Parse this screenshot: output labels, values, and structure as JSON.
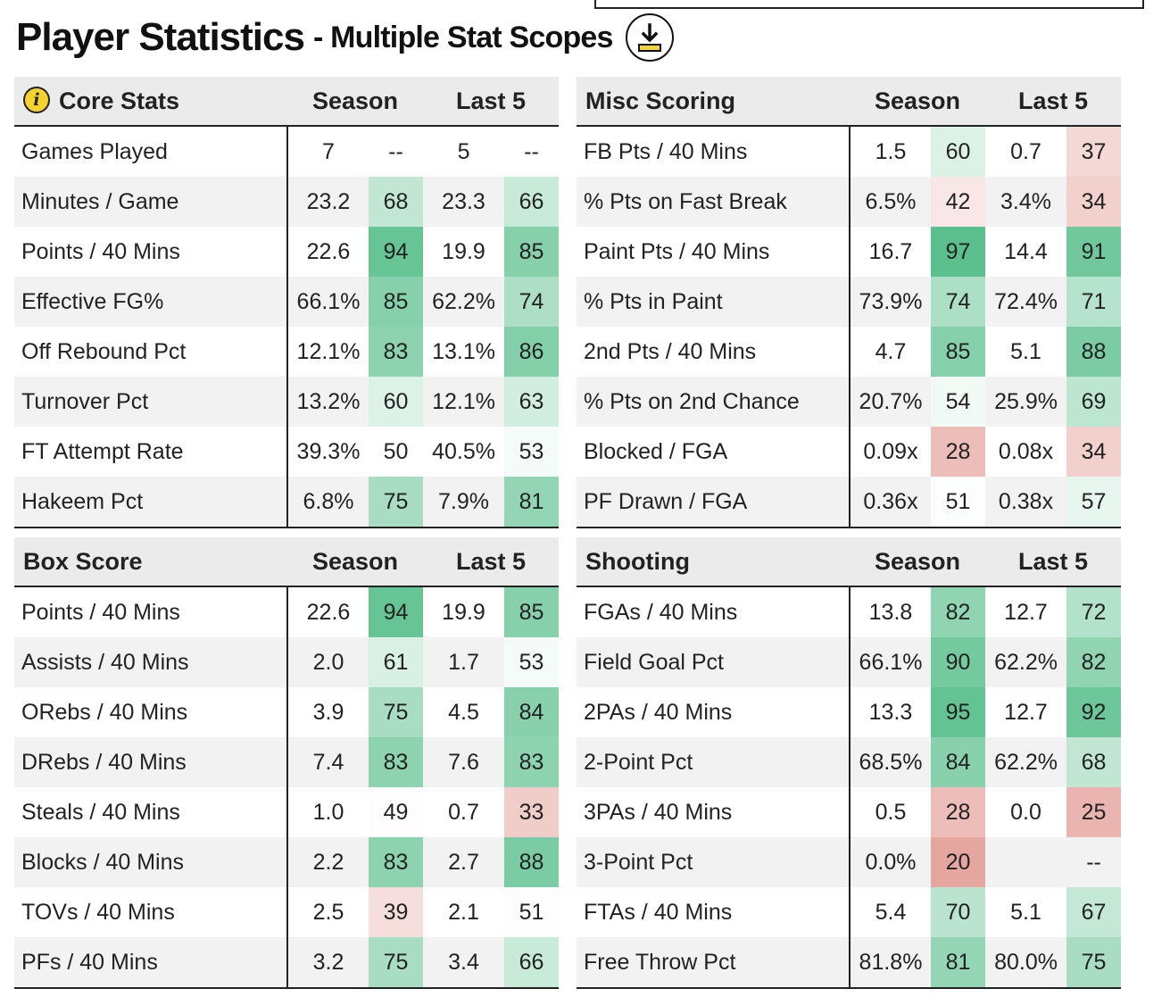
{
  "title": {
    "main": "Player Statistics",
    "sub": "- Multiple Stat Scopes"
  },
  "download_icon": "download-icon",
  "colors": {
    "highlight": "#f2d43a",
    "green": "#5cc08e",
    "red": "#e6a6a0"
  },
  "tables": {
    "core": {
      "category": "Core Stats",
      "season_label": "Season",
      "last5_label": "Last 5",
      "rows": [
        {
          "label": "Games Played",
          "season": "7",
          "season_pct": "--",
          "last5": "5",
          "last5_pct": "--"
        },
        {
          "label": "Minutes / Game",
          "season": "23.2",
          "season_pct": "68",
          "last5": "23.3",
          "last5_pct": "66"
        },
        {
          "label": "Points / 40 Mins",
          "season": "22.6",
          "season_pct": "94",
          "last5": "19.9",
          "last5_pct": "85"
        },
        {
          "label": "Effective FG%",
          "season": "66.1%",
          "season_pct": "85",
          "last5": "62.2%",
          "last5_pct": "74"
        },
        {
          "label": "Off Rebound Pct",
          "season": "12.1%",
          "season_pct": "83",
          "last5": "13.1%",
          "last5_pct": "86"
        },
        {
          "label": "Turnover Pct",
          "season": "13.2%",
          "season_pct": "60",
          "last5": "12.1%",
          "last5_pct": "63"
        },
        {
          "label": "FT Attempt Rate",
          "season": "39.3%",
          "season_pct": "50",
          "last5": "40.5%",
          "last5_pct": "53"
        },
        {
          "label": "Hakeem Pct",
          "season": "6.8%",
          "season_pct": "75",
          "last5": "7.9%",
          "last5_pct": "81"
        }
      ]
    },
    "misc": {
      "category": "Misc Scoring",
      "season_label": "Season",
      "last5_label": "Last 5",
      "rows": [
        {
          "label": "FB Pts / 40 Mins",
          "season": "1.5",
          "season_pct": "60",
          "last5": "0.7",
          "last5_pct": "37"
        },
        {
          "label": "% Pts on Fast Break",
          "season": "6.5%",
          "season_pct": "42",
          "last5": "3.4%",
          "last5_pct": "34"
        },
        {
          "label": "Paint Pts / 40 Mins",
          "season": "16.7",
          "season_pct": "97",
          "last5": "14.4",
          "last5_pct": "91"
        },
        {
          "label": "% Pts in Paint",
          "season": "73.9%",
          "season_pct": "74",
          "last5": "72.4%",
          "last5_pct": "71"
        },
        {
          "label": "2nd Pts / 40 Mins",
          "season": "4.7",
          "season_pct": "85",
          "last5": "5.1",
          "last5_pct": "88"
        },
        {
          "label": "% Pts on 2nd Chance",
          "season": "20.7%",
          "season_pct": "54",
          "last5": "25.9%",
          "last5_pct": "69"
        },
        {
          "label": "Blocked / FGA",
          "season": "0.09x",
          "season_pct": "28",
          "last5": "0.08x",
          "last5_pct": "34"
        },
        {
          "label": "PF Drawn / FGA",
          "season": "0.36x",
          "season_pct": "51",
          "last5": "0.38x",
          "last5_pct": "57"
        }
      ]
    },
    "box": {
      "category": "Box Score",
      "season_label": "Season",
      "last5_label": "Last 5",
      "rows": [
        {
          "label": "Points / 40 Mins",
          "season": "22.6",
          "season_pct": "94",
          "last5": "19.9",
          "last5_pct": "85"
        },
        {
          "label": "Assists / 40 Mins",
          "season": "2.0",
          "season_pct": "61",
          "last5": "1.7",
          "last5_pct": "53"
        },
        {
          "label": "ORebs / 40 Mins",
          "season": "3.9",
          "season_pct": "75",
          "last5": "4.5",
          "last5_pct": "84"
        },
        {
          "label": "DRebs / 40 Mins",
          "season": "7.4",
          "season_pct": "83",
          "last5": "7.6",
          "last5_pct": "83"
        },
        {
          "label": "Steals / 40 Mins",
          "season": "1.0",
          "season_pct": "49",
          "last5": "0.7",
          "last5_pct": "33"
        },
        {
          "label": "Blocks / 40 Mins",
          "season": "2.2",
          "season_pct": "83",
          "last5": "2.7",
          "last5_pct": "88"
        },
        {
          "label": "TOVs / 40 Mins",
          "season": "2.5",
          "season_pct": "39",
          "last5": "2.1",
          "last5_pct": "51"
        },
        {
          "label": "PFs / 40 Mins",
          "season": "3.2",
          "season_pct": "75",
          "last5": "3.4",
          "last5_pct": "66"
        }
      ]
    },
    "shooting": {
      "category": "Shooting",
      "season_label": "Season",
      "last5_label": "Last 5",
      "rows": [
        {
          "label": "FGAs / 40 Mins",
          "season": "13.8",
          "season_pct": "82",
          "last5": "12.7",
          "last5_pct": "72"
        },
        {
          "label": "Field Goal Pct",
          "season": "66.1%",
          "season_pct": "90",
          "last5": "62.2%",
          "last5_pct": "82"
        },
        {
          "label": "2PAs / 40 Mins",
          "season": "13.3",
          "season_pct": "95",
          "last5": "12.7",
          "last5_pct": "92"
        },
        {
          "label": "2-Point Pct",
          "season": "68.5%",
          "season_pct": "84",
          "last5": "62.2%",
          "last5_pct": "68"
        },
        {
          "label": "3PAs / 40 Mins",
          "season": "0.5",
          "season_pct": "28",
          "last5": "0.0",
          "last5_pct": "25"
        },
        {
          "label": "3-Point Pct",
          "season": "0.0%",
          "season_pct": "20",
          "last5": "",
          "last5_pct": "--"
        },
        {
          "label": "FTAs / 40 Mins",
          "season": "5.4",
          "season_pct": "70",
          "last5": "5.1",
          "last5_pct": "67"
        },
        {
          "label": "Free Throw Pct",
          "season": "81.8%",
          "season_pct": "81",
          "last5": "80.0%",
          "last5_pct": "75"
        }
      ]
    }
  }
}
